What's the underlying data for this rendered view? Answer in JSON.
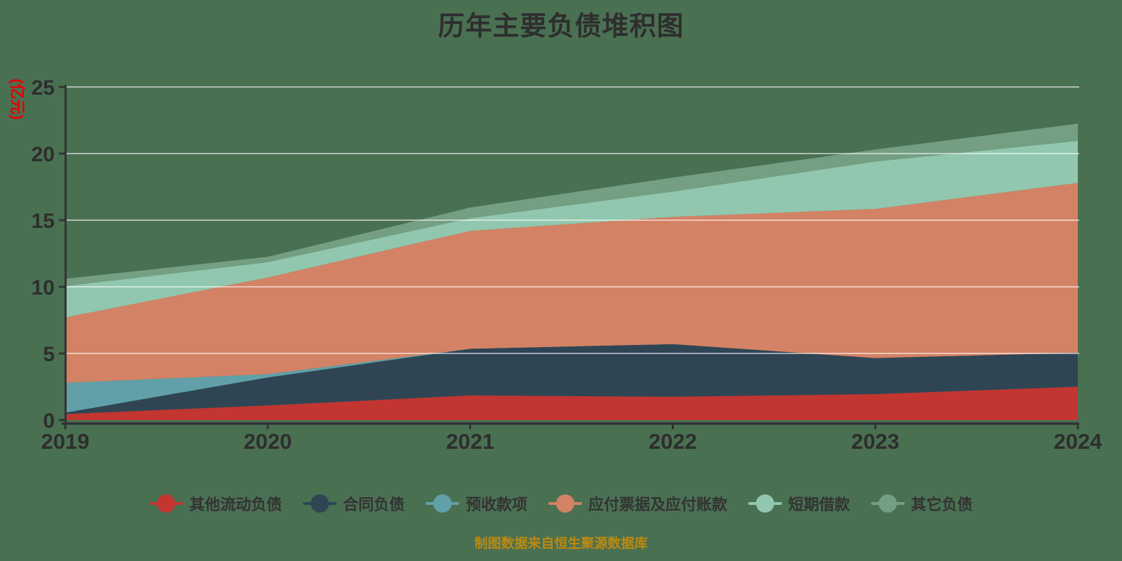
{
  "title": "历年主要负债堆积图",
  "y_axis": {
    "unit_label": "(亿元)",
    "ticks": [
      "0",
      "5",
      "10",
      "15",
      "20",
      "25"
    ],
    "min": 0,
    "max": 25
  },
  "x_axis": {
    "years": [
      "2019",
      "2020",
      "2021",
      "2022",
      "2023",
      "2024"
    ]
  },
  "footer": {
    "source_note": "制图数据来自恒生聚源数据库"
  },
  "colors": {
    "background": "#4a7052",
    "axis": "#333333",
    "gridline": "rgba(255,255,255,0.55)",
    "title_text": "#2e2e2e",
    "tick_text": "#2e2e2e",
    "unit_label_text": "#e60000",
    "source_note_text": "#bd8a0f",
    "legend_text": "#333333"
  },
  "chart_data": {
    "type": "area",
    "stacked": true,
    "title": "历年主要负债堆积图",
    "categories": [
      "2019",
      "2020",
      "2021",
      "2022",
      "2023",
      "2024"
    ],
    "series": [
      {
        "name": "其他流动负债",
        "color": "#c23531",
        "values": [
          0.45,
          1.1,
          1.85,
          1.75,
          1.95,
          2.5
        ]
      },
      {
        "name": "合同负债",
        "color": "#2f4554",
        "values": [
          0.1,
          2.1,
          3.5,
          3.95,
          2.7,
          2.55
        ]
      },
      {
        "name": "预收款项",
        "color": "#61a0a8",
        "values": [
          2.25,
          0.25,
          0,
          0,
          0,
          0
        ]
      },
      {
        "name": "应付票据及应付账款",
        "color": "#d48265",
        "values": [
          4.9,
          7.25,
          8.85,
          9.55,
          11.2,
          12.75
        ]
      },
      {
        "name": "短期借款",
        "color": "#91c7ae",
        "values": [
          2.35,
          1.15,
          0.95,
          1.9,
          3.55,
          3.15
        ]
      },
      {
        "name": "其它负债",
        "color": "#749f83",
        "values": [
          0.55,
          0.4,
          0.8,
          1.05,
          0.9,
          1.3
        ]
      }
    ],
    "stack_totals": [
      10.6,
      12.25,
      15.95,
      18.2,
      20.3,
      22.25
    ],
    "xlabel": "",
    "ylabel": "(亿元)",
    "ylim": [
      0,
      25
    ],
    "y_ticks": [
      0,
      5,
      10,
      15,
      20,
      25
    ],
    "grid": true,
    "legend_position": "bottom"
  }
}
